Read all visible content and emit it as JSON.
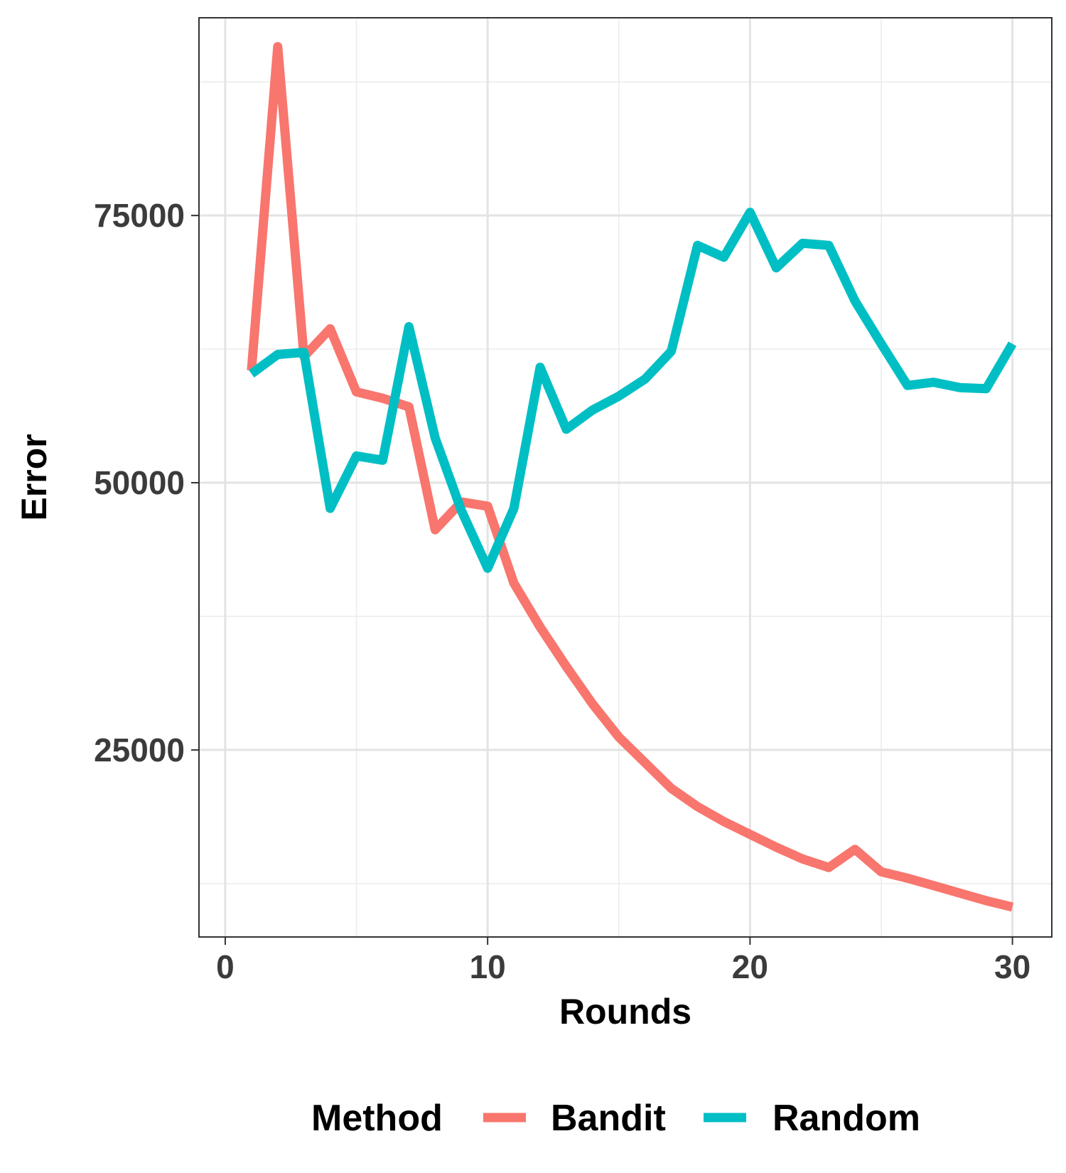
{
  "chart_data": {
    "type": "line",
    "xlabel": "Rounds",
    "ylabel": "Error",
    "xlim": [
      -1,
      31.5
    ],
    "ylim": [
      7500,
      93500
    ],
    "xticks": [
      0,
      10,
      20,
      30
    ],
    "xticks_minor": [
      5,
      15,
      25
    ],
    "yticks": [
      25000,
      50000,
      75000
    ],
    "yticks_minor": [
      12500,
      37500,
      62500,
      87500
    ],
    "grid": true,
    "legend": {
      "title": "Method",
      "position": "bottom",
      "entries": [
        "Bandit",
        "Random"
      ]
    },
    "x": [
      1,
      2,
      3,
      4,
      5,
      6,
      7,
      8,
      9,
      10,
      11,
      12,
      13,
      14,
      15,
      16,
      17,
      18,
      19,
      20,
      21,
      22,
      23,
      24,
      25,
      26,
      27,
      28,
      29,
      30
    ],
    "series": [
      {
        "name": "Bandit",
        "color": "#F8766D",
        "values": [
          60500,
          90800,
          61800,
          64400,
          58500,
          57900,
          57100,
          45600,
          48200,
          47800,
          40600,
          36500,
          32800,
          29300,
          26200,
          23800,
          21400,
          19700,
          18300,
          17100,
          15900,
          14800,
          14000,
          15700,
          13600,
          13000,
          12300,
          11600,
          10900,
          10300
        ]
      },
      {
        "name": "Random",
        "color": "#00BFC4",
        "values": [
          60200,
          62000,
          62200,
          47600,
          52500,
          52100,
          64600,
          54200,
          47400,
          42000,
          47600,
          60800,
          55000,
          56800,
          58100,
          59700,
          62300,
          72200,
          71100,
          75300,
          70100,
          72400,
          72200,
          67000,
          63000,
          59100,
          59400,
          58900,
          58800,
          63000
        ]
      }
    ]
  }
}
